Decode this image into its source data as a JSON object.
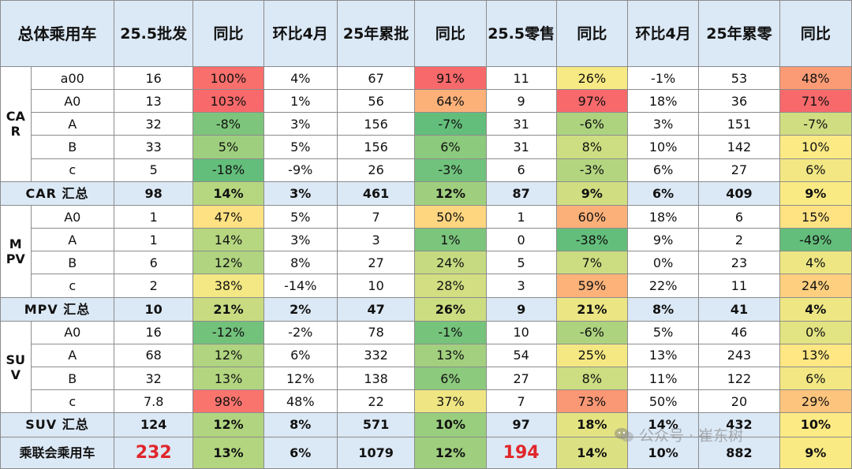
{
  "header": {
    "corner": "总体乘用车",
    "cols": [
      "25.5批发",
      "同比",
      "环比4月",
      "25年累批",
      "同比",
      "25.5零售",
      "同比",
      "环比4月",
      "25年累零",
      "同比"
    ]
  },
  "colors": {
    "header_bg": "#dbe8f5",
    "scale_green": "#63be7b",
    "scale_yellow": "#ffeb84",
    "scale_red": "#f8696b",
    "highlight_red_text": "#e0262a"
  },
  "groups": [
    {
      "label": "CAR",
      "rows": [
        {
          "seg": "a00",
          "v": [
            "16",
            "100%",
            "4%",
            "67",
            "91%",
            "11",
            "26%",
            "-1%",
            "53",
            "48%"
          ]
        },
        {
          "seg": "A0",
          "v": [
            "13",
            "103%",
            "1%",
            "56",
            "64%",
            "9",
            "97%",
            "18%",
            "36",
            "71%"
          ]
        },
        {
          "seg": "A",
          "v": [
            "32",
            "-8%",
            "3%",
            "156",
            "-7%",
            "31",
            "-6%",
            "3%",
            "151",
            "-7%"
          ]
        },
        {
          "seg": "B",
          "v": [
            "33",
            "5%",
            "5%",
            "156",
            "6%",
            "31",
            "8%",
            "10%",
            "142",
            "10%"
          ]
        },
        {
          "seg": "c",
          "v": [
            "5",
            "-18%",
            "-9%",
            "26",
            "-3%",
            "6",
            "-3%",
            "6%",
            "27",
            "6%"
          ]
        }
      ],
      "summary": {
        "label": "CAR 汇总",
        "v": [
          "98",
          "14%",
          "3%",
          "461",
          "12%",
          "87",
          "9%",
          "6%",
          "409",
          "9%"
        ]
      }
    },
    {
      "label": "MPV",
      "rows": [
        {
          "seg": "A0",
          "v": [
            "1",
            "47%",
            "5%",
            "7",
            "50%",
            "1",
            "60%",
            "18%",
            "6",
            "15%"
          ]
        },
        {
          "seg": "A",
          "v": [
            "1",
            "14%",
            "3%",
            "3",
            "1%",
            "0",
            "-38%",
            "9%",
            "2",
            "-49%"
          ]
        },
        {
          "seg": "B",
          "v": [
            "6",
            "12%",
            "8%",
            "27",
            "24%",
            "5",
            "7%",
            "0%",
            "23",
            "4%"
          ]
        },
        {
          "seg": "c",
          "v": [
            "2",
            "38%",
            "-14%",
            "10",
            "28%",
            "3",
            "59%",
            "22%",
            "11",
            "24%"
          ]
        }
      ],
      "summary": {
        "label": "MPV 汇总",
        "v": [
          "10",
          "21%",
          "2%",
          "47",
          "26%",
          "9",
          "21%",
          "8%",
          "41",
          "4%"
        ]
      }
    },
    {
      "label": "SUV",
      "rows": [
        {
          "seg": "A0",
          "v": [
            "16",
            "-12%",
            "-2%",
            "78",
            "-1%",
            "10",
            "-6%",
            "5%",
            "46",
            "0%"
          ]
        },
        {
          "seg": "A",
          "v": [
            "68",
            "12%",
            "6%",
            "332",
            "13%",
            "54",
            "25%",
            "13%",
            "243",
            "13%"
          ]
        },
        {
          "seg": "B",
          "v": [
            "32",
            "13%",
            "12%",
            "138",
            "6%",
            "27",
            "8%",
            "11%",
            "122",
            "6%"
          ]
        },
        {
          "seg": "c",
          "v": [
            "7.8",
            "98%",
            "48%",
            "22",
            "37%",
            "7",
            "73%",
            "50%",
            "20",
            "29%"
          ]
        }
      ],
      "summary": {
        "label": "SUV 汇总",
        "v": [
          "124",
          "12%",
          "8%",
          "571",
          "10%",
          "97",
          "18%",
          "14%",
          "432",
          "10%"
        ]
      }
    }
  ],
  "total": {
    "label": "乘联会乘用车",
    "v": [
      "232",
      "13%",
      "6%",
      "1079",
      "12%",
      "194",
      "14%",
      "10%",
      "882",
      "9%"
    ]
  },
  "watermark": "公众号 · 崔东树"
}
